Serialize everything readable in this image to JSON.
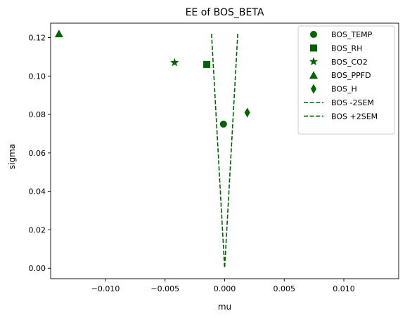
{
  "chart_data": {
    "type": "scatter",
    "title": "EE of BOS_BETA",
    "xlabel": "mu",
    "ylabel": "sigma",
    "xlim": [
      -0.0146,
      0.0146
    ],
    "ylim": [
      -0.0054,
      0.1275
    ],
    "xticks": [
      -0.01,
      -0.005,
      0.0,
      0.005,
      0.01
    ],
    "xtick_labels": [
      "−0.010",
      "−0.005",
      "0.000",
      "0.005",
      "0.010"
    ],
    "yticks": [
      0.0,
      0.02,
      0.04,
      0.06,
      0.08,
      0.1,
      0.12
    ],
    "ytick_labels": [
      "0.00",
      "0.02",
      "0.04",
      "0.06",
      "0.08",
      "0.10",
      "0.12"
    ],
    "grid": false,
    "legend_position": "top-right",
    "color": "#006400",
    "series": [
      {
        "name": "BOS_TEMP",
        "marker": "circle",
        "x": -0.0001,
        "y": 0.075
      },
      {
        "name": "BOS_RH",
        "marker": "square",
        "x": -0.0015,
        "y": 0.106
      },
      {
        "name": "BOS_CO2",
        "marker": "star",
        "x": -0.0042,
        "y": 0.107
      },
      {
        "name": "BOS_PPFD",
        "marker": "triangle",
        "x": -0.0139,
        "y": 0.122
      },
      {
        "name": "BOS_H",
        "marker": "thin-diamond",
        "x": 0.0019,
        "y": 0.081
      }
    ],
    "lines": [
      {
        "name": "BOS -2SEM",
        "style": "dashed",
        "x": [
          -0.0011,
          0.0
        ],
        "y": [
          0.122,
          0.0
        ]
      },
      {
        "name": "BOS +2SEM",
        "style": "dashed",
        "x": [
          0.0011,
          0.0
        ],
        "y": [
          0.122,
          0.0
        ]
      }
    ]
  }
}
